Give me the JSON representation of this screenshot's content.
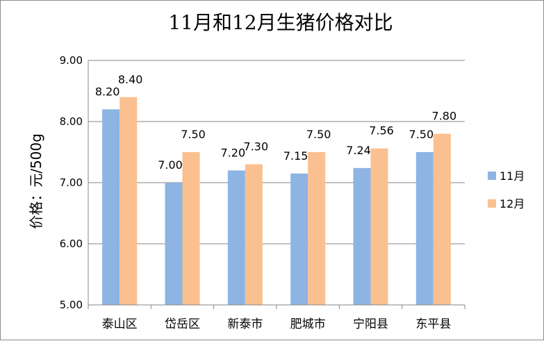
{
  "chart_data": {
    "type": "bar",
    "title": "11月和12月生猪价格对比",
    "ylabel": "价格：元/500g",
    "xlabel": "",
    "ylim": [
      5.0,
      9.0
    ],
    "yticks": [
      "9.00",
      "8.00",
      "7.00",
      "6.00",
      "5.00"
    ],
    "ytick_values": [
      9,
      8,
      7,
      6,
      5
    ],
    "categories": [
      "泰山区",
      "岱岳区",
      "新泰市",
      "肥城市",
      "宁阳县",
      "东平县"
    ],
    "series": [
      {
        "name": "11月",
        "color": "#8eb4e3",
        "values": [
          8.2,
          7.0,
          7.2,
          7.15,
          7.24,
          7.5
        ],
        "labels": [
          "8.20",
          "7.00",
          "7.20",
          "7.15",
          "7.24",
          "7.50"
        ]
      },
      {
        "name": "12月",
        "color": "#fac090",
        "values": [
          8.4,
          7.5,
          7.3,
          7.5,
          7.56,
          7.8
        ],
        "labels": [
          "8.40",
          "7.50",
          "7.30",
          "7.50",
          "7.56",
          "7.80"
        ]
      }
    ],
    "grid": true,
    "legend_position": "right"
  }
}
